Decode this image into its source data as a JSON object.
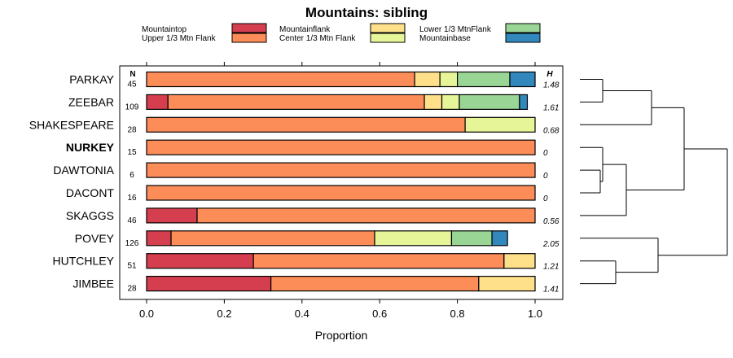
{
  "chart_data": {
    "type": "bar",
    "orientation": "horizontal",
    "stacked": true,
    "title": "Mountains: sibling",
    "xlabel": "Proportion",
    "ylabel": "",
    "xlim": [
      0,
      1
    ],
    "x_ticks": [
      "0.0",
      "0.2",
      "0.4",
      "0.6",
      "0.8",
      "1.0"
    ],
    "n_header": "N",
    "h_header": "H",
    "legend": [
      {
        "name": "Mountaintop",
        "color": "#d53e4f"
      },
      {
        "name": "Upper 1/3 Mtn Flank",
        "color": "#fc8d59"
      },
      {
        "name": "Mountainflank",
        "color": "#fee08b"
      },
      {
        "name": "Center 1/3 Mtn Flank",
        "color": "#e6f598"
      },
      {
        "name": "Lower 1/3 MtnFlank",
        "color": "#99d594"
      },
      {
        "name": "Mountainbase",
        "color": "#3288bd"
      }
    ],
    "categories": [
      "PARKAY",
      "ZEEBAR",
      "SHAKESPEARE",
      "NURKEY",
      "DAWTONIA",
      "DACONT",
      "SKAGGS",
      "POVEY",
      "HUTCHLEY",
      "JIMBEE"
    ],
    "highlighted": [
      "NURKEY"
    ],
    "n": [
      "45",
      "109",
      "28",
      "15",
      "6",
      "16",
      "46",
      "126",
      "51",
      "28"
    ],
    "h": [
      "1.48",
      "1.61",
      "0.68",
      "0",
      "0",
      "0",
      "0.56",
      "2.05",
      "1.21",
      "1.41"
    ],
    "series": [
      {
        "name": "Mountaintop",
        "values": [
          0,
          0.055,
          0,
          0,
          0,
          0,
          0.13,
          0.063,
          0.275,
          0.32
        ]
      },
      {
        "name": "Upper 1/3 Mtn Flank",
        "values": [
          0.69,
          0.66,
          0.82,
          1,
          1,
          1,
          0.87,
          0.524,
          0.645,
          0.535
        ]
      },
      {
        "name": "Mountainflank",
        "values": [
          0.065,
          0.045,
          0,
          0,
          0,
          0,
          0,
          0,
          0.08,
          0.145
        ]
      },
      {
        "name": "Center 1/3 Mtn Flank",
        "values": [
          0.045,
          0.045,
          0.18,
          0,
          0,
          0,
          0,
          0.198,
          0,
          0
        ]
      },
      {
        "name": "Lower 1/3 MtnFlank",
        "values": [
          0.135,
          0.155,
          0,
          0,
          0,
          0,
          0,
          0.104,
          0,
          0
        ]
      },
      {
        "name": "Mountainbase",
        "values": [
          0.065,
          0.02,
          0,
          0,
          0,
          0,
          0,
          0.04,
          0,
          0
        ]
      }
    ],
    "dendrogram": {
      "type": "hierarchical-clustering",
      "leaf_order": [
        "PARKAY",
        "ZEEBAR",
        "SHAKESPEARE",
        "NURKEY",
        "DAWTONIA",
        "DACONT",
        "SKAGGS",
        "POVEY",
        "HUTCHLEY",
        "JIMBEE"
      ]
    }
  }
}
